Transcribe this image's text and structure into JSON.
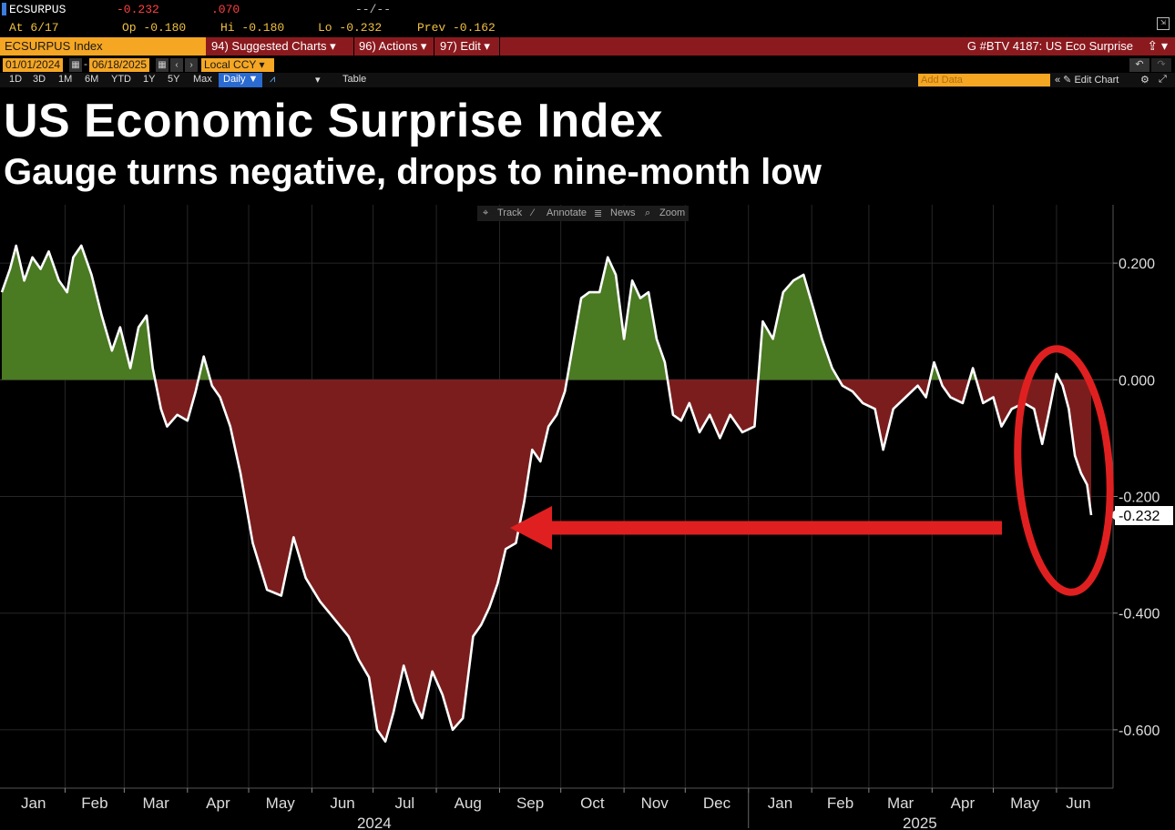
{
  "header": {
    "ticker": "ECSURPUS",
    "last": "-0.232",
    "change": ".070",
    "status": "--/--",
    "at": "At 6/17",
    "open": "Op -0.180",
    "high": "Hi -0.180",
    "low": "Lo -0.232",
    "prev": "Prev -0.162"
  },
  "toolbar": {
    "index_field": "ECSURPUS Index",
    "suggested_charts": "94) Suggested Charts ▾",
    "actions": "96) Actions ▾",
    "edit": "97) Edit ▾",
    "chart_id": "G #BTV 4187: US Eco Surprise",
    "share_icon": "share-icon"
  },
  "dates": {
    "start": "01/01/2024",
    "end": "06/18/2025",
    "currency": "Local CCY ▾"
  },
  "ranges": [
    "1D",
    "3D",
    "1M",
    "6M",
    "YTD",
    "1Y",
    "5Y",
    "Max"
  ],
  "frequency": "Daily ▼",
  "table_label": "Table",
  "add_data_placeholder": "Add Data",
  "edit_chart_label": "« ✎ Edit Chart",
  "title": "US Economic Surprise Index",
  "subtitle": "Gauge turns negative, drops to nine-month low",
  "chart_tools": [
    "Track",
    "Annotate",
    "News",
    "Zoom"
  ],
  "colors": {
    "positive_fill": "#4a7a22",
    "negative_fill": "#7c1d1d",
    "line": "#ffffff",
    "annotation": "#e02020",
    "bloomberg_orange": "#f5a623",
    "bloomberg_red_bar": "#8b1a1f"
  },
  "chart_data": {
    "type": "area",
    "title": "US Economic Surprise Index",
    "subtitle": "Gauge turns negative, drops to nine-month low",
    "xlabel": "",
    "ylabel": "",
    "x_start": "2024-01-01",
    "x_end": "2025-06-18",
    "ylim": [
      -0.7,
      0.3
    ],
    "y_ticks": [
      "0.200",
      "0.000",
      "-0.200",
      "-0.400",
      "-0.600"
    ],
    "x_month_labels": [
      "Jan",
      "Feb",
      "Mar",
      "Apr",
      "May",
      "Jun",
      "Jul",
      "Aug",
      "Sep",
      "Oct",
      "Nov",
      "Dec",
      "Jan",
      "Feb",
      "Mar",
      "Apr",
      "May",
      "Jun"
    ],
    "x_year_labels": [
      "2024",
      "2025"
    ],
    "last_value_label": "-0.232",
    "grid": true,
    "series": [
      {
        "points": [
          [
            "2024-01-01",
            0.15
          ],
          [
            "2024-01-05",
            0.19
          ],
          [
            "2024-01-08",
            0.23
          ],
          [
            "2024-01-12",
            0.17
          ],
          [
            "2024-01-16",
            0.21
          ],
          [
            "2024-01-20",
            0.19
          ],
          [
            "2024-01-24",
            0.22
          ],
          [
            "2024-01-29",
            0.17
          ],
          [
            "2024-02-02",
            0.15
          ],
          [
            "2024-02-05",
            0.21
          ],
          [
            "2024-02-09",
            0.23
          ],
          [
            "2024-02-14",
            0.18
          ],
          [
            "2024-02-19",
            0.11
          ],
          [
            "2024-02-24",
            0.05
          ],
          [
            "2024-02-28",
            0.09
          ],
          [
            "2024-03-04",
            0.02
          ],
          [
            "2024-03-08",
            0.09
          ],
          [
            "2024-03-12",
            0.11
          ],
          [
            "2024-03-15",
            0.02
          ],
          [
            "2024-03-19",
            -0.05
          ],
          [
            "2024-03-22",
            -0.08
          ],
          [
            "2024-03-27",
            -0.06
          ],
          [
            "2024-04-01",
            -0.07
          ],
          [
            "2024-04-05",
            -0.02
          ],
          [
            "2024-04-09",
            0.04
          ],
          [
            "2024-04-13",
            -0.01
          ],
          [
            "2024-04-17",
            -0.03
          ],
          [
            "2024-04-22",
            -0.08
          ],
          [
            "2024-04-27",
            -0.16
          ],
          [
            "2024-05-03",
            -0.28
          ],
          [
            "2024-05-10",
            -0.36
          ],
          [
            "2024-05-17",
            -0.37
          ],
          [
            "2024-05-23",
            -0.27
          ],
          [
            "2024-05-29",
            -0.34
          ],
          [
            "2024-06-05",
            -0.38
          ],
          [
            "2024-06-12",
            -0.41
          ],
          [
            "2024-06-19",
            -0.44
          ],
          [
            "2024-06-24",
            -0.48
          ],
          [
            "2024-06-29",
            -0.51
          ],
          [
            "2024-07-03",
            -0.6
          ],
          [
            "2024-07-07",
            -0.62
          ],
          [
            "2024-07-11",
            -0.57
          ],
          [
            "2024-07-16",
            -0.49
          ],
          [
            "2024-07-21",
            -0.55
          ],
          [
            "2024-07-25",
            -0.58
          ],
          [
            "2024-07-30",
            -0.5
          ],
          [
            "2024-08-04",
            -0.54
          ],
          [
            "2024-08-09",
            -0.6
          ],
          [
            "2024-08-14",
            -0.58
          ],
          [
            "2024-08-19",
            -0.44
          ],
          [
            "2024-08-23",
            -0.42
          ],
          [
            "2024-08-27",
            -0.39
          ],
          [
            "2024-08-31",
            -0.35
          ],
          [
            "2024-09-04",
            -0.29
          ],
          [
            "2024-09-09",
            -0.28
          ],
          [
            "2024-09-13",
            -0.21
          ],
          [
            "2024-09-17",
            -0.12
          ],
          [
            "2024-09-21",
            -0.14
          ],
          [
            "2024-09-25",
            -0.08
          ],
          [
            "2024-09-29",
            -0.06
          ],
          [
            "2024-10-03",
            -0.02
          ],
          [
            "2024-10-07",
            0.06
          ],
          [
            "2024-10-11",
            0.14
          ],
          [
            "2024-10-15",
            0.15
          ],
          [
            "2024-10-20",
            0.15
          ],
          [
            "2024-10-24",
            0.21
          ],
          [
            "2024-10-28",
            0.18
          ],
          [
            "2024-11-01",
            0.07
          ],
          [
            "2024-11-05",
            0.17
          ],
          [
            "2024-11-09",
            0.14
          ],
          [
            "2024-11-13",
            0.15
          ],
          [
            "2024-11-17",
            0.07
          ],
          [
            "2024-11-21",
            0.03
          ],
          [
            "2024-11-25",
            -0.06
          ],
          [
            "2024-11-29",
            -0.07
          ],
          [
            "2024-12-03",
            -0.04
          ],
          [
            "2024-12-08",
            -0.09
          ],
          [
            "2024-12-13",
            -0.06
          ],
          [
            "2024-12-18",
            -0.1
          ],
          [
            "2024-12-23",
            -0.06
          ],
          [
            "2024-12-29",
            -0.09
          ],
          [
            "2025-01-04",
            -0.08
          ],
          [
            "2025-01-08",
            0.1
          ],
          [
            "2025-01-13",
            0.07
          ],
          [
            "2025-01-18",
            0.15
          ],
          [
            "2025-01-23",
            0.17
          ],
          [
            "2025-01-28",
            0.18
          ],
          [
            "2025-02-02",
            0.12
          ],
          [
            "2025-02-06",
            0.07
          ],
          [
            "2025-02-11",
            0.02
          ],
          [
            "2025-02-16",
            -0.01
          ],
          [
            "2025-02-21",
            -0.02
          ],
          [
            "2025-02-26",
            -0.04
          ],
          [
            "2025-03-04",
            -0.05
          ],
          [
            "2025-03-08",
            -0.12
          ],
          [
            "2025-03-13",
            -0.05
          ],
          [
            "2025-03-19",
            -0.03
          ],
          [
            "2025-03-25",
            -0.01
          ],
          [
            "2025-03-29",
            -0.03
          ],
          [
            "2025-04-02",
            0.03
          ],
          [
            "2025-04-06",
            -0.01
          ],
          [
            "2025-04-10",
            -0.03
          ],
          [
            "2025-04-16",
            -0.04
          ],
          [
            "2025-04-21",
            0.02
          ],
          [
            "2025-04-26",
            -0.04
          ],
          [
            "2025-05-01",
            -0.03
          ],
          [
            "2025-05-05",
            -0.08
          ],
          [
            "2025-05-10",
            -0.05
          ],
          [
            "2025-05-16",
            -0.04
          ],
          [
            "2025-05-21",
            -0.05
          ],
          [
            "2025-05-25",
            -0.11
          ],
          [
            "2025-05-28",
            -0.06
          ],
          [
            "2025-06-01",
            0.01
          ],
          [
            "2025-06-04",
            -0.01
          ],
          [
            "2025-06-07",
            -0.05
          ],
          [
            "2025-06-10",
            -0.13
          ],
          [
            "2025-06-13",
            -0.16
          ],
          [
            "2025-06-16",
            -0.18
          ],
          [
            "2025-06-18",
            -0.232
          ]
        ]
      }
    ],
    "annotations": [
      {
        "type": "arrow",
        "color": "#e02020"
      },
      {
        "type": "ellipse",
        "color": "#e02020"
      }
    ]
  }
}
